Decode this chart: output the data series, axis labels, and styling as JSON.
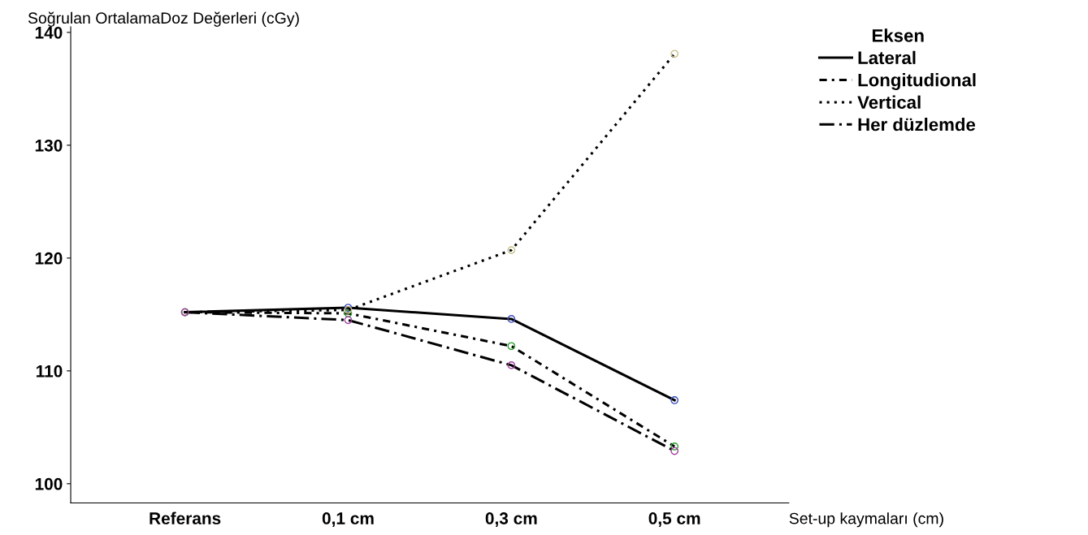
{
  "chart_data": {
    "type": "line",
    "ylabel": "Soğrulan OrtalamaDoz Değerleri (cGy)",
    "xlabel": "Set-up kaymaları (cm)",
    "legend_title": "Eksen",
    "categories": [
      "Referans",
      "0,1 cm",
      "0,3 cm",
      "0,5 cm"
    ],
    "series": [
      {
        "name": "Lateral",
        "color": "#000000",
        "line_style": "solid",
        "colors": [
          "#3b4cc0",
          "#3b4cc0",
          "#3b4cc0",
          "#3b4cc0"
        ],
        "values": [
          115.2,
          115.6,
          114.6,
          107.4
        ]
      },
      {
        "name": "Longitudional",
        "color": "#000000",
        "line_style": "dashdot2",
        "colors": [
          "#2ca02c",
          "#2ca02c",
          "#2ca02c",
          "#2ca02c"
        ],
        "values": [
          115.2,
          115.1,
          112.2,
          103.3
        ]
      },
      {
        "name": "Vertical",
        "color": "#000000",
        "line_style": "dotted",
        "colors": [
          "#c8c08a",
          "#c8c08a",
          "#c8c08a",
          "#c8c08a"
        ],
        "values": [
          115.2,
          115.4,
          120.7,
          138.1
        ]
      },
      {
        "name": "Her düzlemde",
        "color": "#000000",
        "line_style": "dashdot",
        "colors": [
          "#a040a0",
          "#a040a0",
          "#a040a0",
          "#a040a0"
        ],
        "values": [
          115.2,
          114.5,
          110.5,
          102.9
        ]
      }
    ],
    "ylim": [
      98.3,
      140.5
    ],
    "yticks": [
      100,
      110,
      120,
      130,
      140
    ],
    "marker": "circle",
    "legend": "right",
    "grid": false
  }
}
